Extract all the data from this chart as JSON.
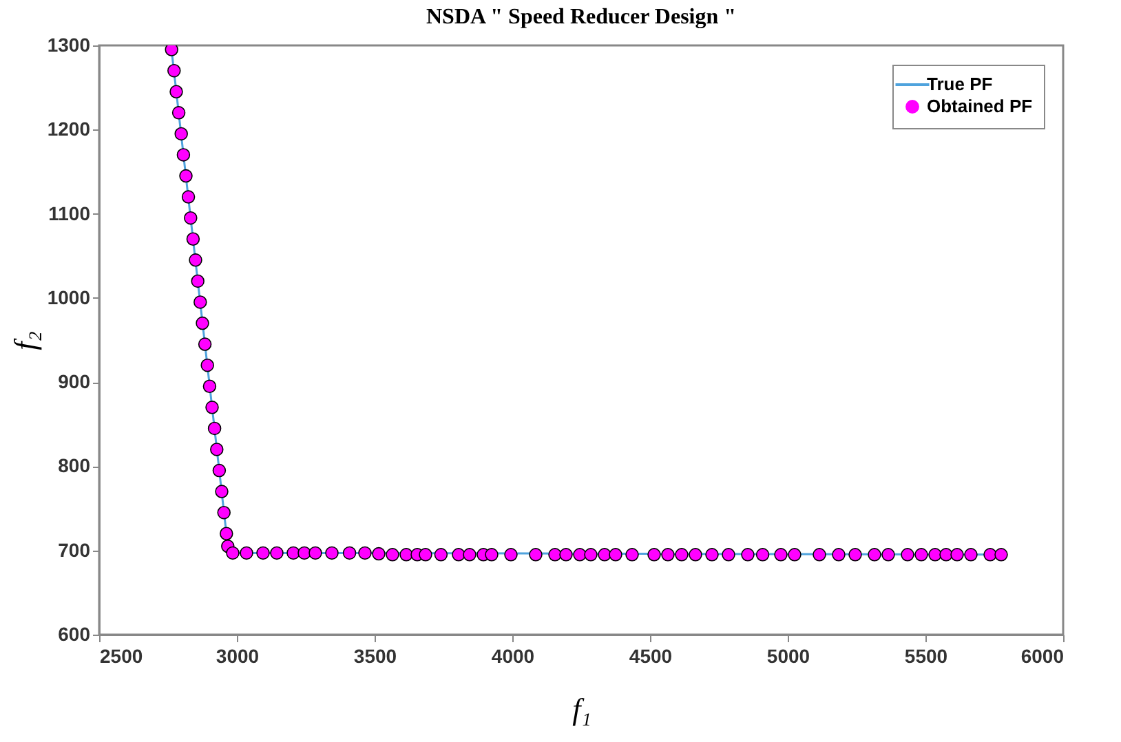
{
  "chart_data": {
    "type": "scatter",
    "title": "NSDA \" Speed Reducer Design \"",
    "xlabel": "f₁",
    "ylabel": "f₂",
    "xlim": [
      2500,
      6000
    ],
    "xticks": [
      2500,
      3000,
      3500,
      4000,
      4500,
      5000,
      5500,
      6000
    ],
    "ylim": [
      600,
      1300
    ],
    "yticks": [
      600,
      700,
      800,
      900,
      1000,
      1100,
      1200,
      1300
    ],
    "grid": false,
    "legend": "top right",
    "series": [
      {
        "name": "True PF",
        "type": "line",
        "marker": "none",
        "color": "#4fa3dd",
        "x": [
          2761,
          2970,
          3500,
          5790
        ],
        "values": [
          1300,
          697,
          697,
          695
        ]
      },
      {
        "name": "Obtained PF",
        "marker": "circle",
        "color": "#ff00ff",
        "x": [
          2763,
          2772,
          2780,
          2789,
          2798,
          2806,
          2815,
          2824,
          2832,
          2841,
          2850,
          2858,
          2867,
          2875,
          2884,
          2893,
          2901,
          2910,
          2919,
          2927,
          2936,
          2945,
          2953,
          2962,
          2967,
          2985,
          3035,
          3095,
          3145,
          3205,
          3245,
          3285,
          3345,
          3409,
          3465,
          3515,
          3565,
          3615,
          3655,
          3685,
          3741,
          3805,
          3845,
          3895,
          3925,
          3995,
          4085,
          4155,
          4195,
          4245,
          4285,
          4335,
          4375,
          4435,
          4515,
          4565,
          4615,
          4665,
          4725,
          4785,
          4855,
          4909,
          4975,
          5025,
          5115,
          5185,
          5245,
          5315,
          5365,
          5435,
          5485,
          5535,
          5575,
          5615,
          5665,
          5735,
          5775
        ],
        "values": [
          1295,
          1270,
          1245,
          1220,
          1195,
          1170,
          1145,
          1120,
          1095,
          1070,
          1045,
          1020,
          995,
          970,
          945,
          920,
          895,
          870,
          845,
          820,
          795,
          770,
          745,
          720,
          705,
          697,
          697,
          697,
          697,
          697,
          697,
          697,
          697,
          697,
          697,
          696,
          695,
          695,
          695,
          695,
          695,
          695,
          695,
          695,
          695,
          695,
          695,
          695,
          695,
          695,
          695,
          695,
          695,
          695,
          695,
          695,
          695,
          695,
          695,
          695,
          695,
          695,
          695,
          695,
          695,
          695,
          695,
          695,
          695,
          695,
          695,
          695,
          695,
          695,
          695,
          695,
          695
        ]
      }
    ]
  }
}
